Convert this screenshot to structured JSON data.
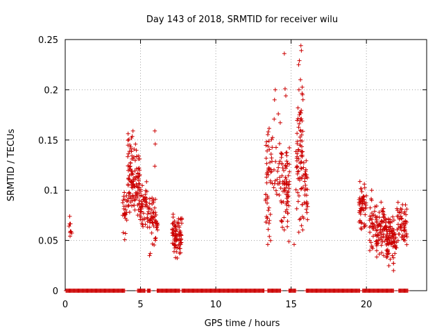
{
  "chart_data": {
    "type": "scatter",
    "title": "Day 143 of 2018, SRMTID for receiver wilu",
    "xlabel": "GPS time / hours",
    "ylabel": "SRMTID / TECUs",
    "xlim": [
      0,
      24
    ],
    "ylim": [
      0,
      0.25
    ],
    "xticks": [
      0,
      5,
      10,
      15,
      20
    ],
    "xtick_labels": [
      "0",
      "5",
      "10",
      "15",
      "20"
    ],
    "yticks": [
      0,
      0.05,
      0.1,
      0.15,
      0.2,
      0.25
    ],
    "ytick_labels": [
      "0",
      "0.05",
      "0.1",
      "0.15",
      "0.2",
      "0.25"
    ],
    "grid": true,
    "marker": "+",
    "color": "#cc0000",
    "zero_segments": [
      [
        0.05,
        3.95
      ],
      [
        4.8,
        5.3
      ],
      [
        5.45,
        5.65
      ],
      [
        6.1,
        7.6
      ],
      [
        7.75,
        13.25
      ],
      [
        13.45,
        14.35
      ],
      [
        14.85,
        15.35
      ],
      [
        16.0,
        19.6
      ],
      [
        19.75,
        21.85
      ],
      [
        22.15,
        22.8
      ]
    ],
    "clusters": [
      {
        "x": [
          0.25,
          0.45
        ],
        "y": [
          0.045,
          0.075
        ],
        "n": 8
      },
      {
        "x": [
          3.8,
          4.15
        ],
        "y": [
          0.045,
          0.105
        ],
        "n": 25
      },
      {
        "x": [
          4.15,
          4.95
        ],
        "y": [
          0.065,
          0.16
        ],
        "n": 120
      },
      {
        "x": [
          4.95,
          5.55
        ],
        "y": [
          0.06,
          0.11
        ],
        "n": 55
      },
      {
        "x": [
          5.55,
          6.15
        ],
        "y": [
          0.04,
          0.1
        ],
        "n": 50
      },
      {
        "x": [
          7.1,
          7.75
        ],
        "y": [
          0.03,
          0.08
        ],
        "n": 80
      },
      {
        "x": [
          13.3,
          13.85
        ],
        "y": [
          0.045,
          0.18
        ],
        "n": 55
      },
      {
        "x": [
          13.85,
          14.3
        ],
        "y": [
          0.07,
          0.19
        ],
        "n": 20
      },
      {
        "x": [
          14.3,
          14.9
        ],
        "y": [
          0.045,
          0.16
        ],
        "n": 70
      },
      {
        "x": [
          15.3,
          15.8
        ],
        "y": [
          0.05,
          0.22
        ],
        "n": 75
      },
      {
        "x": [
          15.8,
          16.1
        ],
        "y": [
          0.06,
          0.14
        ],
        "n": 30
      },
      {
        "x": [
          19.5,
          20.0
        ],
        "y": [
          0.055,
          0.11
        ],
        "n": 55
      },
      {
        "x": [
          20.2,
          20.6
        ],
        "y": [
          0.03,
          0.1
        ],
        "n": 30
      },
      {
        "x": [
          20.6,
          21.3
        ],
        "y": [
          0.03,
          0.09
        ],
        "n": 80
      },
      {
        "x": [
          21.3,
          22.0
        ],
        "y": [
          0.02,
          0.08
        ],
        "n": 90
      },
      {
        "x": [
          22.0,
          22.7
        ],
        "y": [
          0.04,
          0.09
        ],
        "n": 60
      }
    ],
    "outliers": [
      {
        "x": 4.5,
        "y": 0.159
      },
      {
        "x": 4.4,
        "y": 0.152
      },
      {
        "x": 5.95,
        "y": 0.159
      },
      {
        "x": 5.98,
        "y": 0.146
      },
      {
        "x": 5.95,
        "y": 0.124
      },
      {
        "x": 14.55,
        "y": 0.236
      },
      {
        "x": 14.6,
        "y": 0.201
      },
      {
        "x": 14.65,
        "y": 0.194
      },
      {
        "x": 14.15,
        "y": 0.176
      },
      {
        "x": 13.95,
        "y": 0.2
      },
      {
        "x": 13.9,
        "y": 0.19
      },
      {
        "x": 15.65,
        "y": 0.244
      },
      {
        "x": 15.68,
        "y": 0.239
      },
      {
        "x": 15.55,
        "y": 0.229
      },
      {
        "x": 15.5,
        "y": 0.225
      },
      {
        "x": 15.62,
        "y": 0.21
      },
      {
        "x": 15.52,
        "y": 0.2
      },
      {
        "x": 15.55,
        "y": 0.175
      },
      {
        "x": 15.7,
        "y": 0.155
      },
      {
        "x": 5.6,
        "y": 0.035
      },
      {
        "x": 5.65,
        "y": 0.037
      },
      {
        "x": 21.8,
        "y": 0.02
      },
      {
        "x": 20.35,
        "y": 0.09
      },
      {
        "x": 20.35,
        "y": 0.1
      },
      {
        "x": 22.1,
        "y": 0.088
      },
      {
        "x": 13.45,
        "y": 0.046
      },
      {
        "x": 15.2,
        "y": 0.046
      },
      {
        "x": 0.3,
        "y": 0.074
      }
    ]
  }
}
